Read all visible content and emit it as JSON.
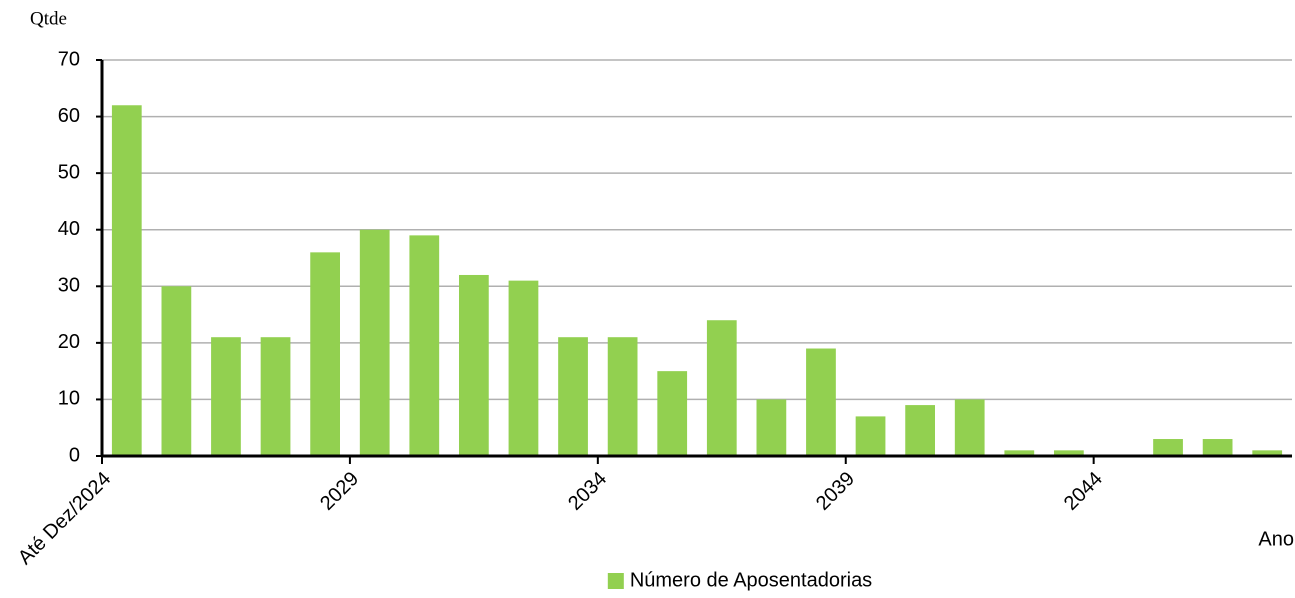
{
  "chart_data": {
    "type": "bar",
    "y_label": "Qtde",
    "x_label": "Ano",
    "categories": [
      "Até Dez/2024",
      null,
      null,
      null,
      null,
      "2029",
      null,
      null,
      null,
      null,
      "2034",
      null,
      null,
      null,
      null,
      "2039",
      null,
      null,
      null,
      null,
      "2044",
      null,
      null,
      null
    ],
    "series": [
      {
        "name": "Número de Aposentadorias",
        "color": "#92d050",
        "values": [
          62,
          30,
          21,
          21,
          36,
          40,
          39,
          32,
          31,
          21,
          21,
          15,
          24,
          10,
          19,
          7,
          9,
          10,
          1,
          1,
          0,
          3,
          3,
          1
        ]
      }
    ],
    "ylim": [
      0,
      70
    ],
    "yticks": [
      0,
      10,
      20,
      30,
      40,
      50,
      60,
      70
    ],
    "grid": true,
    "legend": "bottom"
  }
}
